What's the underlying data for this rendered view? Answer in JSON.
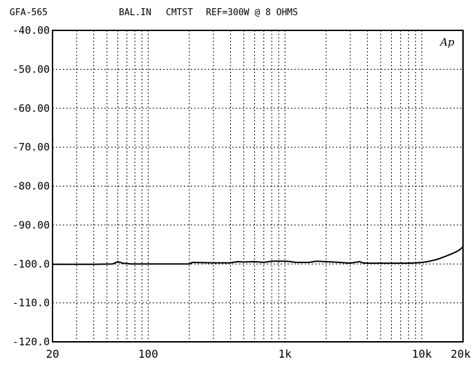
{
  "header": {
    "model": "GFA-565",
    "input": "BAL.IN",
    "test": "CMTST",
    "reference": "REF=300W @ 8 OHMS"
  },
  "logo": "Ap",
  "chart_data": {
    "type": "line",
    "title": "",
    "xlabel": "",
    "ylabel": "",
    "xscale": "log",
    "xlim": [
      20,
      20000
    ],
    "ylim": [
      -120,
      -40
    ],
    "grid": true,
    "yticks": [
      {
        "value": -40,
        "label": "-40.00"
      },
      {
        "value": -50,
        "label": "-50.00"
      },
      {
        "value": -60,
        "label": "-60.00"
      },
      {
        "value": -70,
        "label": "-70.00"
      },
      {
        "value": -80,
        "label": "-80.00"
      },
      {
        "value": -90,
        "label": "-90.00"
      },
      {
        "value": -100,
        "label": "-100.0"
      },
      {
        "value": -110,
        "label": "-110.0"
      },
      {
        "value": -120,
        "label": "-120.0"
      }
    ],
    "xticks": [
      {
        "value": 20,
        "label": "20"
      },
      {
        "value": 100,
        "label": "100"
      },
      {
        "value": 1000,
        "label": "1k"
      },
      {
        "value": 10000,
        "label": "10k"
      },
      {
        "value": 20000,
        "label": "20k"
      }
    ],
    "series": [
      {
        "x": [
          20,
          40,
          55,
          60,
          65,
          75,
          100,
          150,
          200,
          210,
          300,
          400,
          450,
          500,
          600,
          700,
          800,
          1000,
          1100,
          1200,
          1500,
          1700,
          2000,
          2500,
          3000,
          3500,
          3700,
          4000,
          5000,
          6000,
          7000,
          8000,
          9000,
          10000,
          11000,
          12000,
          13000,
          14000,
          15000,
          16000,
          17000,
          18000,
          19000,
          20000
        ],
        "y": [
          -100.1,
          -100.1,
          -100.0,
          -99.4,
          -99.8,
          -100.0,
          -100.0,
          -100.0,
          -100.0,
          -99.6,
          -99.7,
          -99.7,
          -99.4,
          -99.5,
          -99.4,
          -99.6,
          -99.3,
          -99.3,
          -99.4,
          -99.6,
          -99.6,
          -99.3,
          -99.4,
          -99.6,
          -99.8,
          -99.4,
          -99.7,
          -99.8,
          -99.8,
          -99.8,
          -99.8,
          -99.8,
          -99.7,
          -99.6,
          -99.4,
          -99.1,
          -98.8,
          -98.4,
          -98.0,
          -97.6,
          -97.2,
          -96.8,
          -96.3,
          -95.6
        ]
      }
    ]
  }
}
